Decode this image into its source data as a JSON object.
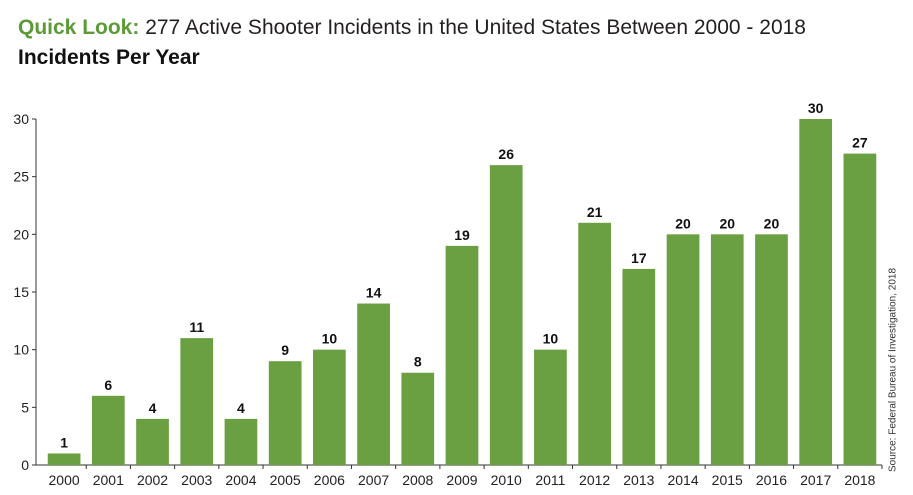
{
  "header": {
    "lead": "Quick Look:",
    "title": "277 Active Shooter Incidents in the United States Between 2000 - 2018",
    "subtitle": "Incidents Per Year"
  },
  "source": "Source: Federal Bureau of Investigation, 2018",
  "colors": {
    "bar": "#6a9f42",
    "accent": "#5c9a36",
    "axis": "#333333"
  },
  "chart_data": {
    "type": "bar",
    "title": "Incidents Per Year",
    "categories": [
      "2000",
      "2001",
      "2002",
      "2003",
      "2004",
      "2005",
      "2006",
      "2007",
      "2008",
      "2009",
      "2010",
      "2011",
      "2012",
      "2013",
      "2014",
      "2015",
      "2016",
      "2017",
      "2018"
    ],
    "values": [
      1,
      6,
      4,
      11,
      4,
      9,
      10,
      14,
      8,
      19,
      26,
      10,
      21,
      17,
      20,
      20,
      20,
      30,
      27
    ],
    "data_labels": [
      "1",
      "6",
      "4",
      "11",
      "4",
      "9",
      "10",
      "14",
      "8",
      "19",
      "26",
      "10",
      "21",
      "17",
      "20",
      "20",
      "20",
      "30",
      "27"
    ],
    "ylim": [
      0,
      30
    ],
    "yticks": [
      0,
      5,
      10,
      15,
      20,
      25,
      30
    ],
    "ytick_labels": [
      "0",
      "5",
      "10",
      "15",
      "20",
      "25",
      "30"
    ],
    "grid": false,
    "legend": "none"
  }
}
